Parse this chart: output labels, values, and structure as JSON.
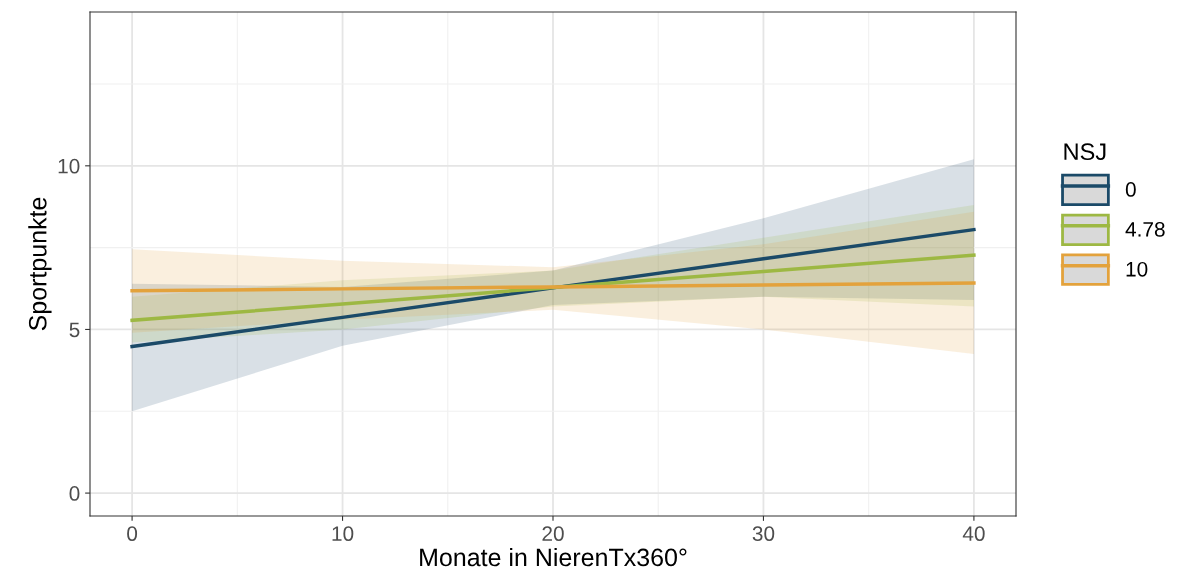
{
  "chart_data": {
    "type": "line",
    "xlabel": "Monate in NierenTx360°",
    "ylabel": "Sportpunkte",
    "legend_title": "NSJ",
    "x": [
      0,
      10,
      20,
      30,
      40
    ],
    "series": [
      {
        "name": "0",
        "color": "#1b4a68",
        "values": [
          4.48,
          5.37,
          6.27,
          7.16,
          8.05
        ],
        "lower": [
          2.5,
          4.5,
          5.75,
          6.0,
          5.9
        ],
        "upper": [
          6.4,
          6.3,
          6.8,
          8.4,
          10.2
        ]
      },
      {
        "name": "4.78",
        "color": "#9db843",
        "values": [
          5.28,
          5.78,
          6.28,
          6.77,
          7.27
        ],
        "lower": [
          4.6,
          5.0,
          5.7,
          6.0,
          5.7
        ],
        "upper": [
          6.0,
          6.5,
          6.8,
          7.8,
          8.8
        ]
      },
      {
        "name": "10",
        "color": "#e3a23c",
        "values": [
          6.18,
          6.24,
          6.3,
          6.36,
          6.42
        ],
        "lower": [
          4.9,
          5.3,
          5.6,
          5.0,
          4.25
        ],
        "upper": [
          7.45,
          7.1,
          6.9,
          7.6,
          8.6
        ]
      }
    ],
    "xlim": [
      -2,
      42
    ],
    "ylim": [
      -0.7,
      14.7
    ],
    "xticks": [
      0,
      {
        "value": 5,
        "label": null
      },
      10,
      {
        "value": 15,
        "label": null
      },
      20,
      {
        "value": 25,
        "label": null
      },
      30,
      {
        "value": 35,
        "label": null
      },
      40
    ],
    "yticks": [
      0,
      {
        "value": 2.5,
        "label": null
      },
      5,
      {
        "value": 7.5,
        "label": null
      },
      10,
      {
        "value": 12.5,
        "label": null
      }
    ],
    "grid": true,
    "legend": "right",
    "line_style": "solid",
    "marker": "none"
  }
}
